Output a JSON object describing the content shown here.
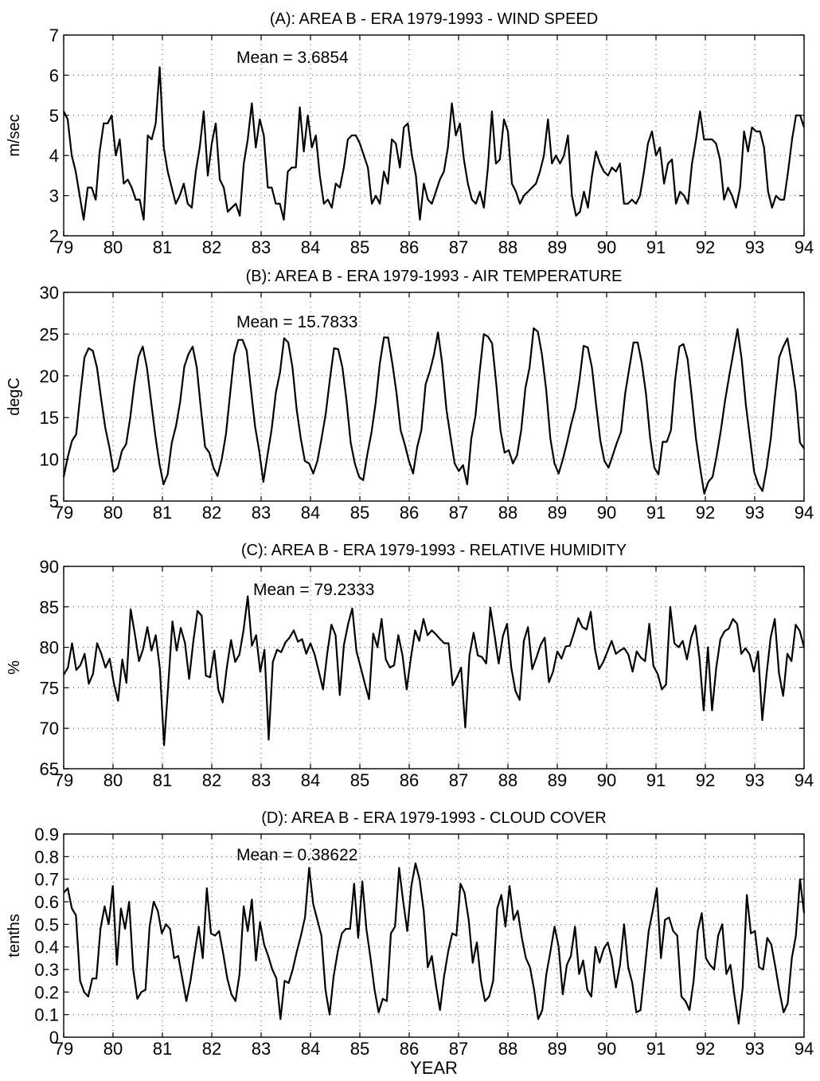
{
  "chart_data": [
    {
      "type": "line",
      "title": "(A): AREA B - ERA 1979-1993 - WIND SPEED",
      "ylabel": "m/sec",
      "xlabel": "",
      "annotation": "Mean = 3.6854",
      "xlim": [
        79,
        94
      ],
      "ylim": [
        2,
        7
      ],
      "xticks": [
        79,
        80,
        81,
        82,
        83,
        84,
        85,
        86,
        87,
        88,
        89,
        90,
        91,
        92,
        93,
        94
      ],
      "yticks": [
        2,
        3,
        4,
        5,
        6,
        7
      ],
      "grid": true,
      "series": [
        {
          "color": "#000000",
          "values": [
            5.1,
            4.9,
            4.0,
            3.6,
            3.0,
            2.4,
            3.2,
            3.2,
            2.9,
            4.1,
            4.8,
            4.8,
            5.0,
            4.0,
            4.4,
            3.3,
            3.4,
            3.2,
            2.9,
            2.9,
            2.4,
            4.5,
            4.4,
            4.8,
            6.2,
            4.2,
            3.6,
            3.2,
            2.8,
            3.0,
            3.3,
            2.8,
            2.7,
            3.6,
            4.2,
            5.1,
            3.5,
            4.3,
            4.8,
            3.4,
            3.2,
            2.6,
            2.7,
            2.8,
            2.5,
            3.8,
            4.4,
            5.3,
            4.2,
            4.9,
            4.5,
            3.2,
            3.2,
            2.8,
            2.8,
            2.4,
            3.6,
            3.7,
            3.7,
            5.2,
            4.1,
            5.0,
            4.2,
            4.5,
            3.5,
            2.8,
            2.9,
            2.7,
            3.3,
            3.2,
            3.7,
            4.4,
            4.5,
            4.5,
            4.3,
            4.0,
            3.7,
            2.8,
            3.0,
            2.8,
            3.6,
            3.3,
            4.4,
            4.3,
            3.7,
            4.7,
            4.8,
            4.0,
            3.5,
            2.4,
            3.3,
            2.9,
            2.8,
            3.1,
            3.4,
            3.6,
            4.2,
            5.3,
            4.5,
            4.8,
            3.9,
            3.3,
            2.9,
            2.8,
            3.1,
            2.7,
            3.7,
            5.1,
            3.8,
            3.9,
            4.9,
            4.6,
            3.3,
            3.1,
            2.8,
            3.0,
            3.1,
            3.2,
            3.3,
            3.6,
            4.0,
            4.9,
            3.8,
            4.0,
            3.8,
            4.0,
            4.5,
            3.0,
            2.5,
            2.6,
            3.1,
            2.7,
            3.5,
            4.1,
            3.8,
            3.6,
            3.5,
            3.7,
            3.6,
            3.8,
            2.8,
            2.8,
            2.9,
            2.8,
            3.0,
            3.6,
            4.3,
            4.6,
            4.0,
            4.2,
            3.3,
            3.8,
            3.9,
            2.8,
            3.1,
            3.0,
            2.8,
            3.8,
            4.4,
            5.1,
            4.4,
            4.4,
            4.4,
            4.3,
            3.9,
            2.9,
            3.2,
            3.0,
            2.7,
            3.2,
            4.6,
            4.1,
            4.7,
            4.6,
            4.6,
            4.2,
            3.1,
            2.7,
            3.0,
            2.9,
            2.9,
            3.6,
            4.4,
            5.0,
            5.0,
            4.7
          ]
        }
      ]
    },
    {
      "type": "line",
      "title": "(B): AREA B - ERA 1979-1993 - AIR TEMPERATURE",
      "ylabel": "degC",
      "xlabel": "",
      "annotation": "Mean = 15.7833",
      "xlim": [
        79,
        94
      ],
      "ylim": [
        5,
        30
      ],
      "xticks": [
        79,
        80,
        81,
        82,
        83,
        84,
        85,
        86,
        87,
        88,
        89,
        90,
        91,
        92,
        93,
        94
      ],
      "yticks": [
        5,
        10,
        15,
        20,
        25,
        30
      ],
      "grid": true,
      "series": [
        {
          "color": "#000000",
          "values": [
            7.9,
            10.3,
            12.2,
            13.0,
            17.8,
            22.2,
            23.3,
            23.0,
            21.0,
            17.3,
            13.8,
            11.4,
            8.5,
            9.0,
            11.0,
            11.8,
            15.0,
            19.1,
            22.3,
            23.5,
            21.0,
            17.0,
            13.0,
            9.5,
            7.0,
            8.2,
            12.0,
            14.0,
            16.9,
            21.1,
            22.6,
            23.5,
            21.0,
            16.0,
            11.5,
            10.8,
            9.0,
            8.0,
            10.0,
            13.0,
            17.8,
            22.5,
            24.3,
            24.3,
            23.0,
            18.5,
            14.0,
            11.0,
            7.3,
            10.5,
            13.6,
            18.0,
            20.4,
            24.5,
            24.0,
            21.0,
            16.0,
            12.5,
            9.8,
            9.5,
            8.3,
            9.8,
            12.5,
            15.5,
            19.6,
            23.3,
            23.2,
            21.0,
            17.0,
            12.0,
            9.5,
            7.9,
            7.5,
            10.6,
            13.2,
            16.8,
            21.5,
            24.6,
            24.6,
            21.5,
            18.0,
            13.5,
            11.8,
            9.8,
            8.3,
            11.5,
            13.5,
            19.0,
            20.5,
            22.5,
            25.2,
            21.5,
            16.0,
            12.7,
            9.5,
            8.6,
            9.3,
            7.0,
            12.5,
            15.2,
            20.5,
            25.0,
            24.7,
            23.9,
            19.0,
            13.5,
            10.8,
            11.1,
            9.5,
            10.5,
            13.5,
            18.5,
            21.0,
            25.7,
            25.3,
            22.5,
            18.3,
            12.5,
            9.5,
            8.3,
            10.0,
            12.0,
            14.2,
            16.1,
            19.5,
            23.6,
            23.4,
            21.0,
            16.5,
            12.3,
            9.8,
            9.0,
            10.5,
            12.0,
            13.3,
            17.9,
            21.0,
            24.0,
            24.0,
            21.5,
            17.8,
            12.5,
            9.0,
            8.2,
            12.1,
            12.1,
            13.5,
            19.5,
            23.5,
            23.8,
            22.0,
            17.5,
            12.5,
            9.0,
            5.9,
            7.3,
            7.9,
            10.5,
            13.5,
            17.0,
            20.0,
            22.8,
            25.6,
            22.0,
            16.5,
            12.5,
            8.5,
            7.0,
            6.2,
            9.0,
            12.5,
            17.5,
            22.2,
            23.5,
            24.5,
            21.5,
            18.0,
            12.0,
            11.3
          ]
        }
      ]
    },
    {
      "type": "line",
      "title": "(C): AREA B - ERA 1979-1993 - RELATIVE HUMIDITY",
      "ylabel": "%",
      "xlabel": "",
      "annotation": "Mean = 79.2333",
      "xlim": [
        79,
        94
      ],
      "ylim": [
        65,
        90
      ],
      "xticks": [
        79,
        80,
        81,
        82,
        83,
        84,
        85,
        86,
        87,
        88,
        89,
        90,
        91,
        92,
        93,
        94
      ],
      "yticks": [
        65,
        70,
        75,
        80,
        85,
        90
      ],
      "grid": true,
      "series": [
        {
          "color": "#000000",
          "values": [
            76.6,
            77.5,
            80.5,
            77.2,
            77.8,
            79.2,
            75.5,
            76.7,
            80.5,
            79.2,
            77.5,
            78.6,
            75.5,
            73.4,
            78.5,
            75.6,
            84.7,
            81.7,
            78.3,
            79.8,
            82.5,
            79.6,
            81.5,
            77.4,
            67.9,
            75.5,
            83.2,
            79.6,
            82.4,
            80.5,
            76.1,
            80.8,
            84.5,
            83.9,
            76.5,
            76.3,
            79.6,
            74.7,
            73.2,
            77.5,
            80.9,
            78.2,
            79.1,
            82.1,
            86.3,
            80.2,
            81.5,
            77.0,
            79.7,
            68.6,
            78.2,
            79.7,
            79.4,
            80.6,
            81.2,
            82.1,
            80.7,
            81.0,
            79.2,
            80.5,
            79.1,
            77.0,
            74.8,
            79.2,
            82.8,
            81.5,
            74.1,
            80.3,
            82.9,
            84.8,
            79.5,
            77.5,
            75.5,
            73.6,
            81.7,
            80.0,
            83.5,
            78.5,
            77.5,
            77.8,
            81.5,
            79.0,
            74.8,
            78.7,
            82.1,
            80.8,
            83.5,
            81.5,
            82.1,
            81.6,
            81.0,
            80.5,
            80.5,
            75.3,
            76.3,
            77.5,
            70.1,
            79.0,
            81.8,
            79.0,
            78.8,
            78.0,
            84.9,
            81.5,
            78.0,
            81.4,
            82.9,
            77.5,
            74.6,
            73.5,
            80.8,
            82.5,
            77.3,
            78.7,
            80.3,
            81.2,
            75.7,
            77.0,
            79.5,
            78.6,
            80.1,
            80.2,
            81.8,
            83.6,
            82.5,
            82.2,
            84.4,
            79.8,
            77.3,
            78.2,
            79.5,
            80.8,
            79.2,
            79.6,
            79.9,
            79.1,
            77.0,
            79.5,
            78.7,
            78.3,
            82.9,
            77.7,
            76.7,
            74.8,
            75.4,
            85.0,
            80.5,
            80.0,
            80.8,
            78.5,
            81.2,
            82.7,
            78.7,
            72.2,
            80.0,
            72.2,
            77.5,
            81.0,
            82.0,
            82.3,
            83.5,
            82.9,
            79.2,
            79.9,
            79.1,
            77.0,
            79.5,
            71.0,
            76.5,
            81.2,
            83.5,
            76.8,
            74.0,
            79.2,
            78.3,
            82.8,
            82.0,
            80.0
          ]
        }
      ]
    },
    {
      "type": "line",
      "title": "(D): AREA B - ERA 1979-1993 - CLOUD COVER",
      "ylabel": "tenths",
      "xlabel": "YEAR",
      "annotation": "Mean = 0.38622",
      "xlim": [
        79,
        94
      ],
      "ylim": [
        0,
        0.9
      ],
      "xticks": [
        79,
        80,
        81,
        82,
        83,
        84,
        85,
        86,
        87,
        88,
        89,
        90,
        91,
        92,
        93,
        94
      ],
      "yticks": [
        0,
        0.1,
        0.2,
        0.3,
        0.4,
        0.5,
        0.6,
        0.7,
        0.8,
        0.9
      ],
      "grid": true,
      "series": [
        {
          "color": "#000000",
          "values": [
            0.64,
            0.66,
            0.57,
            0.54,
            0.25,
            0.2,
            0.18,
            0.26,
            0.26,
            0.48,
            0.58,
            0.5,
            0.67,
            0.32,
            0.57,
            0.48,
            0.6,
            0.3,
            0.17,
            0.2,
            0.21,
            0.49,
            0.6,
            0.56,
            0.46,
            0.5,
            0.48,
            0.35,
            0.36,
            0.26,
            0.16,
            0.25,
            0.37,
            0.49,
            0.35,
            0.66,
            0.46,
            0.45,
            0.47,
            0.37,
            0.26,
            0.19,
            0.16,
            0.28,
            0.58,
            0.47,
            0.61,
            0.34,
            0.51,
            0.41,
            0.36,
            0.3,
            0.26,
            0.08,
            0.25,
            0.24,
            0.3,
            0.38,
            0.45,
            0.53,
            0.75,
            0.59,
            0.52,
            0.45,
            0.21,
            0.1,
            0.27,
            0.38,
            0.46,
            0.48,
            0.48,
            0.68,
            0.44,
            0.69,
            0.48,
            0.35,
            0.21,
            0.11,
            0.17,
            0.16,
            0.46,
            0.49,
            0.75,
            0.6,
            0.47,
            0.67,
            0.77,
            0.7,
            0.56,
            0.31,
            0.36,
            0.23,
            0.12,
            0.27,
            0.38,
            0.46,
            0.45,
            0.68,
            0.64,
            0.52,
            0.33,
            0.42,
            0.25,
            0.16,
            0.18,
            0.25,
            0.57,
            0.63,
            0.49,
            0.67,
            0.52,
            0.56,
            0.44,
            0.35,
            0.31,
            0.21,
            0.08,
            0.12,
            0.28,
            0.38,
            0.49,
            0.4,
            0.19,
            0.32,
            0.36,
            0.49,
            0.28,
            0.34,
            0.21,
            0.18,
            0.4,
            0.33,
            0.39,
            0.42,
            0.35,
            0.22,
            0.32,
            0.5,
            0.31,
            0.24,
            0.11,
            0.12,
            0.29,
            0.47,
            0.56,
            0.66,
            0.35,
            0.52,
            0.53,
            0.47,
            0.45,
            0.18,
            0.16,
            0.12,
            0.25,
            0.47,
            0.55,
            0.35,
            0.32,
            0.3,
            0.45,
            0.5,
            0.28,
            0.32,
            0.18,
            0.06,
            0.22,
            0.63,
            0.46,
            0.47,
            0.31,
            0.3,
            0.44,
            0.41,
            0.31,
            0.2,
            0.11,
            0.15,
            0.35,
            0.45,
            0.7,
            0.55
          ]
        }
      ]
    }
  ]
}
